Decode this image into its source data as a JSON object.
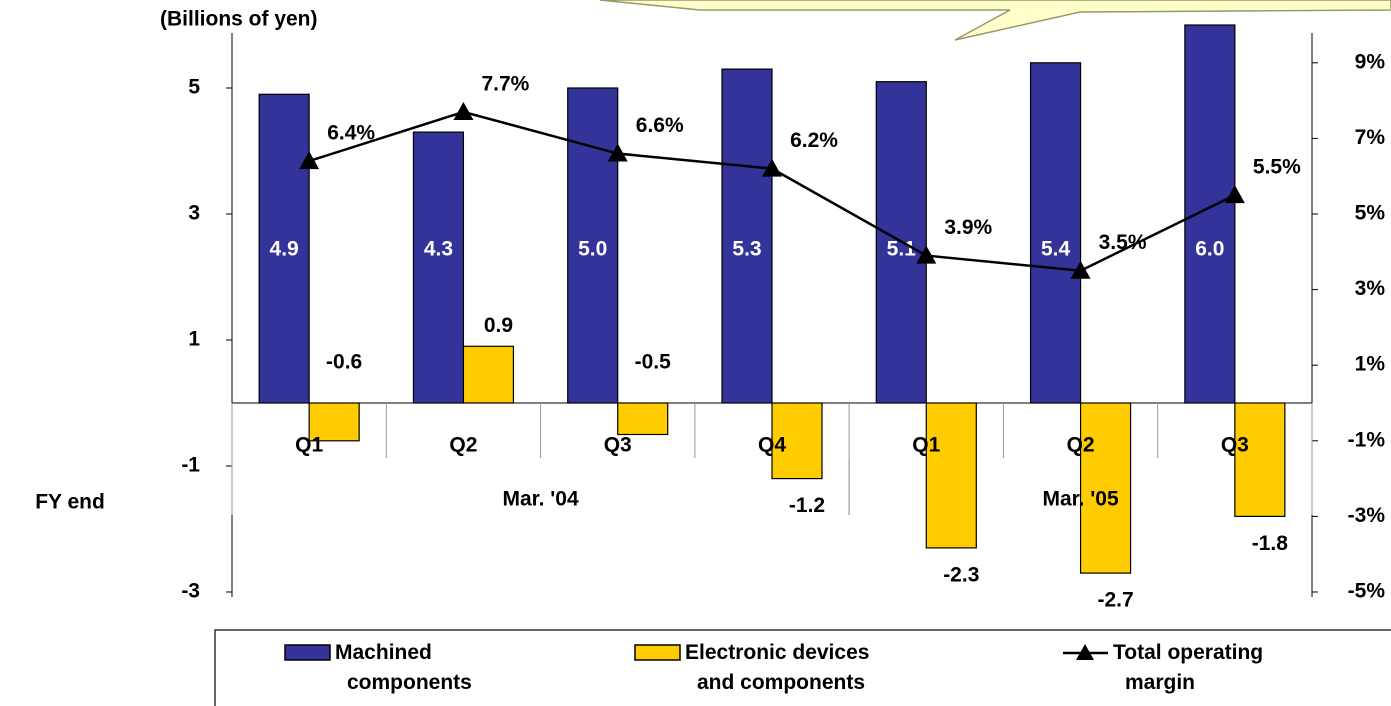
{
  "chart_data": {
    "type": "bar_line",
    "y_label": "(Billions of yen)",
    "x_group_label": "FY end",
    "categories": [
      "Q1",
      "Q2",
      "Q3",
      "Q4",
      "Q1",
      "Q2",
      "Q3"
    ],
    "groups": [
      {
        "label": "Mar. '04",
        "count": 4
      },
      {
        "label": "Mar. '05",
        "count": 3
      }
    ],
    "series": [
      {
        "name": "Machined components",
        "type": "bar",
        "color": "#333399",
        "values": [
          4.9,
          4.3,
          5.0,
          5.3,
          5.1,
          5.4,
          6.0
        ],
        "value_labels": [
          "4.9",
          "4.3",
          "5.0",
          "5.3",
          "5.1",
          "5.4",
          "6.0"
        ]
      },
      {
        "name": "Electronic devices and components",
        "type": "bar",
        "color": "#ffcc00",
        "values": [
          -0.6,
          0.9,
          -0.5,
          -1.2,
          -2.3,
          -2.7,
          -1.8
        ],
        "value_labels": [
          "-0.6",
          "0.9",
          "-0.5",
          "-1.2",
          "-2.3",
          "-2.7",
          "-1.8"
        ]
      },
      {
        "name": "Total operating margin",
        "type": "line",
        "axis": "y2",
        "color": "#000000",
        "values": [
          6.4,
          7.7,
          6.6,
          6.2,
          3.9,
          3.5,
          5.5
        ],
        "value_labels": [
          "6.4%",
          "7.7%",
          "6.6%",
          "6.2%",
          "3.9%",
          "3.5%",
          "5.5%"
        ]
      }
    ],
    "ylim": [
      -3,
      6
    ],
    "yticks": [
      -3,
      -1,
      1,
      3,
      5
    ],
    "y2lim": [
      -5,
      10
    ],
    "y2ticks": [
      {
        "value": -5,
        "label": "-5%"
      },
      {
        "value": -3,
        "label": "-3%"
      },
      {
        "value": -1,
        "label": "-1%"
      },
      {
        "value": 1,
        "label": "1%"
      },
      {
        "value": 3,
        "label": "3%"
      },
      {
        "value": 5,
        "label": "5%"
      },
      {
        "value": 7,
        "label": "7%"
      },
      {
        "value": 9,
        "label": "9%"
      }
    ],
    "legend": "bottom"
  }
}
